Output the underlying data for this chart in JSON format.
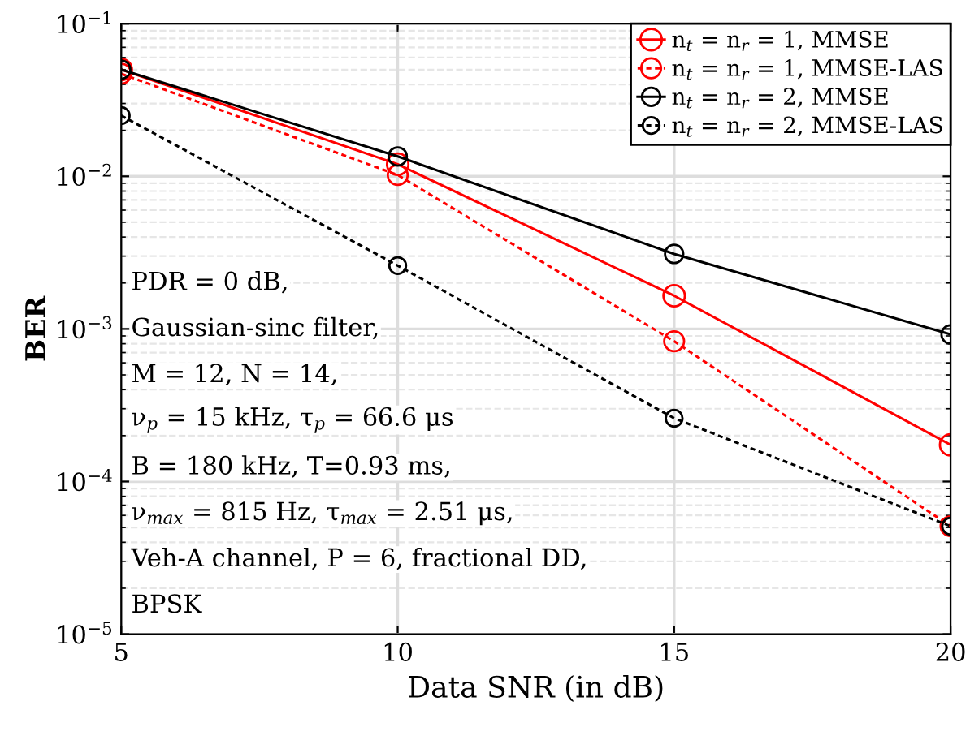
{
  "chart_data": {
    "type": "line",
    "xlabel": "Data SNR (in dB)",
    "ylabel": "BER",
    "x": [
      5,
      10,
      15,
      20
    ],
    "series": [
      {
        "name": "n$_{t}$ = n$_{r}$ = 1, MMSE",
        "color": "#ff0000",
        "line_style": "solid",
        "values": [
          0.05,
          0.012,
          0.00165,
          0.000174
        ]
      },
      {
        "name": "n$_{t}$ = n$_{r}$ = 1, MMSE-LAS",
        "color": "#ff0000",
        "line_style": "dotted",
        "values": [
          0.047,
          0.0102,
          0.00083,
          5.1e-05
        ]
      },
      {
        "name": "n$_{t}$ = n$_{r}$ = 2, MMSE",
        "color": "#000000",
        "line_style": "solid",
        "values": [
          0.05,
          0.0135,
          0.0031,
          0.00092
        ]
      },
      {
        "name": "n$_{t}$ = n$_{r}$ = 2, MMSE-LAS",
        "color": "#000000",
        "line_style": "dotted",
        "values": [
          0.025,
          0.0026,
          0.00026,
          5.1e-05
        ]
      }
    ],
    "marker": "circle",
    "log": "y",
    "grid": true,
    "legend": "top right",
    "xlim": [
      5,
      20
    ],
    "xticks": [
      5,
      10,
      15,
      20
    ],
    "ylim": [
      1e-05,
      0.1
    ],
    "yticks": [
      {
        "value": 1e-05,
        "label": "10$^{−5}$"
      },
      {
        "value": 0.0001,
        "label": "10$^{−4}$"
      },
      {
        "value": 0.001,
        "label": "10$^{−3}$"
      },
      {
        "value": 0.01,
        "label": "10$^{−2}$"
      },
      {
        "value": 0.1,
        "label": "10$^{−1}$"
      }
    ],
    "annotations": [
      "PDR = 0 dB,",
      "Gaussian-sinc filter,",
      "M = 12, N = 14,",
      "ν$_{p}$ = 15 kHz, τ$_{p}$ = 66.6 μs",
      "B = 180 kHz, T=0.93 ms,",
      "ν$_{max}$ = 815 Hz, τ$_{max}$ = 2.51 μs,",
      "Veh-A channel, P = 6, fractional DD,",
      "BPSK"
    ]
  }
}
